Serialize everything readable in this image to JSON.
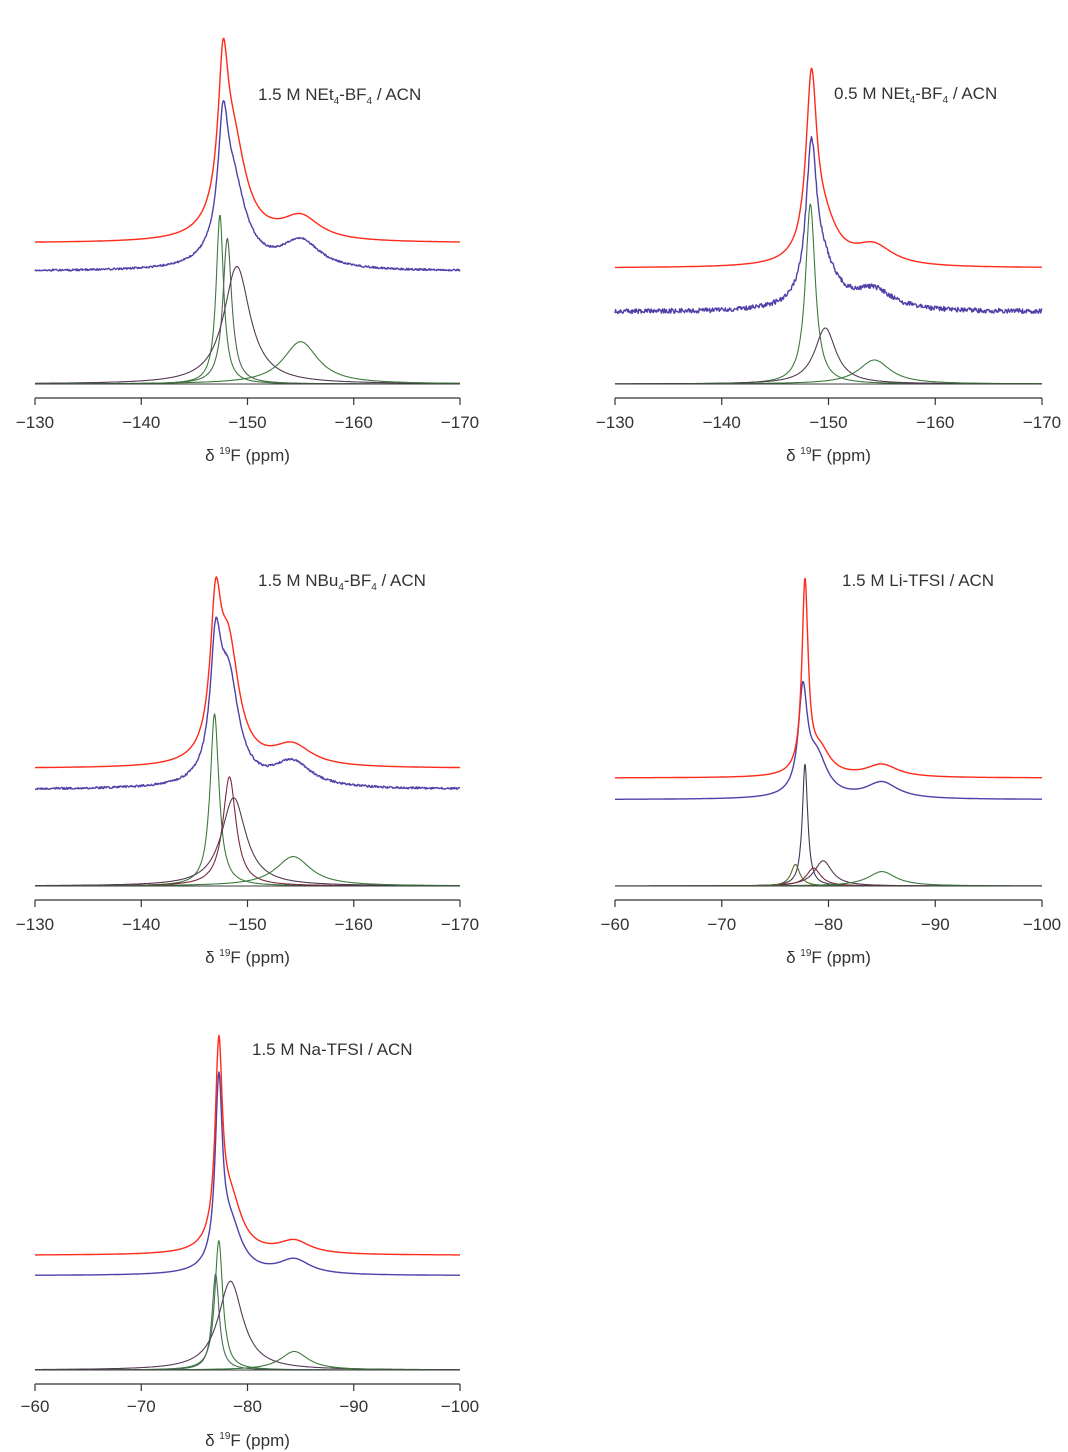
{
  "chart_data": [
    {
      "type": "line",
      "title": "1.5 M NEt4-BF4 / ACN",
      "title_parts": [
        {
          "text": "1.5 M NEt",
          "sub": false
        },
        {
          "text": "4",
          "sub": true
        },
        {
          "text": "-BF",
          "sub": false
        },
        {
          "text": "4",
          "sub": true
        },
        {
          "text": " / ACN",
          "sub": false
        }
      ],
      "xlabel": "δ 19F (ppm)",
      "xlabel_parts": [
        {
          "text": "δ ",
          "sup": false
        },
        {
          "text": "19",
          "sup": true
        },
        {
          "text": "F (ppm)",
          "sup": false
        }
      ],
      "xlim": [
        -130,
        -170
      ],
      "x_reversed": true,
      "xticks": [
        -130,
        -140,
        -150,
        -160,
        -170
      ],
      "xtick_labels": [
        "−130",
        "−140",
        "−150",
        "−160",
        "−170"
      ],
      "y_ticks_shown": false,
      "series": [
        {
          "color": "#ff2a1a",
          "offset": 0.6,
          "noise": 0,
          "peaks": [
            {
              "center": -147.7,
              "amplitude": 0.55,
              "width": 0.55
            },
            {
              "center": -148.6,
              "amplitude": 0.42,
              "width": 1.5
            },
            {
              "center": -155.0,
              "amplitude": 0.1,
              "width": 2.2
            }
          ]
        },
        {
          "color": "#5040a8",
          "offset": 0.48,
          "noise": 0.004,
          "peaks": [
            {
              "center": -147.7,
              "amplitude": 0.45,
              "width": 0.55
            },
            {
              "center": -148.6,
              "amplitude": 0.36,
              "width": 1.5
            },
            {
              "center": -155.0,
              "amplitude": 0.12,
              "width": 2.2
            }
          ]
        },
        {
          "color": "#3d7a3d",
          "offset": 0.0,
          "noise": 0,
          "peaks": [
            {
              "center": -147.4,
              "amplitude": 0.72,
              "width": 0.42
            }
          ]
        },
        {
          "color": "#4a6a4a",
          "offset": 0.0,
          "noise": 0,
          "peaks": [
            {
              "center": -148.1,
              "amplitude": 0.62,
              "width": 0.5
            }
          ]
        },
        {
          "color": "#553a55",
          "offset": 0.0,
          "noise": 0,
          "peaks": [
            {
              "center": -149.0,
              "amplitude": 0.5,
              "width": 1.5
            }
          ]
        },
        {
          "color": "#3d7a3d",
          "offset": 0.0,
          "noise": 0,
          "peaks": [
            {
              "center": -155.0,
              "amplitude": 0.18,
              "width": 2.0
            }
          ]
        },
        {
          "color": "#3a3a3a",
          "offset": 0.0,
          "noise": 0,
          "peaks": []
        }
      ]
    },
    {
      "type": "line",
      "title": "0.5 M NEt4-BF4 / ACN",
      "title_parts": [
        {
          "text": "0.5 M NEt",
          "sub": false
        },
        {
          "text": "4",
          "sub": true
        },
        {
          "text": "-BF",
          "sub": false
        },
        {
          "text": "4",
          "sub": true
        },
        {
          "text": " / ACN",
          "sub": false
        }
      ],
      "xlabel": "δ 19F (ppm)",
      "xlabel_parts": [
        {
          "text": "δ ",
          "sup": false
        },
        {
          "text": "19",
          "sup": true
        },
        {
          "text": "F (ppm)",
          "sup": false
        }
      ],
      "xlim": [
        -130,
        -170
      ],
      "x_reversed": true,
      "xticks": [
        -130,
        -140,
        -150,
        -160,
        -170
      ],
      "xtick_labels": [
        "−130",
        "−140",
        "−150",
        "−160",
        "−170"
      ],
      "y_ticks_shown": false,
      "series": [
        {
          "color": "#ff2a1a",
          "offset": 0.58,
          "noise": 0,
          "peaks": [
            {
              "center": -148.4,
              "amplitude": 0.85,
              "width": 0.6
            },
            {
              "center": -149.5,
              "amplitude": 0.2,
              "width": 1.6
            },
            {
              "center": -154.2,
              "amplitude": 0.1,
              "width": 2.2
            }
          ]
        },
        {
          "color": "#5040a8",
          "offset": 0.36,
          "noise": 0.012,
          "peaks": [
            {
              "center": -148.4,
              "amplitude": 0.72,
              "width": 0.6
            },
            {
              "center": -149.5,
              "amplitude": 0.2,
              "width": 1.6
            },
            {
              "center": -154.2,
              "amplitude": 0.1,
              "width": 2.2
            }
          ]
        },
        {
          "color": "#3d7a3d",
          "offset": 0.0,
          "noise": 0,
          "peaks": [
            {
              "center": -148.3,
              "amplitude": 0.9,
              "width": 0.55
            }
          ]
        },
        {
          "color": "#553a55",
          "offset": 0.0,
          "noise": 0,
          "peaks": [
            {
              "center": -149.7,
              "amplitude": 0.28,
              "width": 1.2
            }
          ]
        },
        {
          "color": "#3d7a3d",
          "offset": 0.0,
          "noise": 0,
          "peaks": [
            {
              "center": -154.3,
              "amplitude": 0.12,
              "width": 1.8
            }
          ]
        },
        {
          "color": "#3a3a3a",
          "offset": 0.0,
          "noise": 0,
          "peaks": []
        }
      ]
    },
    {
      "type": "line",
      "title": "1.5 M NBu4-BF4 / ACN",
      "title_parts": [
        {
          "text": "1.5 M NBu",
          "sub": false
        },
        {
          "text": "4",
          "sub": true
        },
        {
          "text": "-BF",
          "sub": false
        },
        {
          "text": "4",
          "sub": true
        },
        {
          "text": " / ACN",
          "sub": false
        }
      ],
      "xlabel": "δ 19F (ppm)",
      "xlabel_parts": [
        {
          "text": "δ ",
          "sup": false
        },
        {
          "text": "19",
          "sup": true
        },
        {
          "text": "F (ppm)",
          "sup": false
        }
      ],
      "xlim": [
        -130,
        -170
      ],
      "x_reversed": true,
      "xticks": [
        -130,
        -140,
        -150,
        -160,
        -170
      ],
      "xtick_labels": [
        "−130",
        "−140",
        "−150",
        "−160",
        "−170"
      ],
      "y_ticks_shown": false,
      "series": [
        {
          "color": "#ff2a1a",
          "offset": 0.56,
          "noise": 0,
          "peaks": [
            {
              "center": -147.0,
              "amplitude": 0.62,
              "width": 0.6
            },
            {
              "center": -148.2,
              "amplitude": 0.55,
              "width": 1.2
            },
            {
              "center": -154.2,
              "amplitude": 0.1,
              "width": 2.2
            }
          ]
        },
        {
          "color": "#5040a8",
          "offset": 0.46,
          "noise": 0.005,
          "peaks": [
            {
              "center": -147.0,
              "amplitude": 0.55,
              "width": 0.6
            },
            {
              "center": -148.2,
              "amplitude": 0.5,
              "width": 1.2
            },
            {
              "center": -154.2,
              "amplitude": 0.12,
              "width": 2.2
            }
          ]
        },
        {
          "color": "#3d7a3d",
          "offset": 0.0,
          "noise": 0,
          "peaks": [
            {
              "center": -146.9,
              "amplitude": 0.82,
              "width": 0.5
            }
          ]
        },
        {
          "color": "#7a2a3a",
          "offset": 0.0,
          "noise": 0,
          "peaks": [
            {
              "center": -148.3,
              "amplitude": 0.52,
              "width": 0.75
            }
          ]
        },
        {
          "color": "#553a55",
          "offset": 0.0,
          "noise": 0,
          "peaks": [
            {
              "center": -148.7,
              "amplitude": 0.42,
              "width": 1.4
            }
          ]
        },
        {
          "color": "#3d7a3d",
          "offset": 0.0,
          "noise": 0,
          "peaks": [
            {
              "center": -154.3,
              "amplitude": 0.14,
              "width": 2.0
            }
          ]
        },
        {
          "color": "#3a3a3a",
          "offset": 0.0,
          "noise": 0,
          "peaks": []
        }
      ]
    },
    {
      "type": "line",
      "title": "1.5 M Li-TFSI / ACN",
      "title_parts": [
        {
          "text": "1.5 M Li-TFSI / ACN",
          "sub": false
        }
      ],
      "xlabel": "δ 19F (ppm)",
      "xlabel_parts": [
        {
          "text": "δ ",
          "sup": false
        },
        {
          "text": "19",
          "sup": true
        },
        {
          "text": "F (ppm)",
          "sup": false
        }
      ],
      "xlim": [
        -60,
        -100
      ],
      "x_reversed": true,
      "xticks": [
        -60,
        -70,
        -80,
        -90,
        -100
      ],
      "xtick_labels": [
        "−60",
        "−70",
        "−80",
        "−90",
        "−100"
      ],
      "y_ticks_shown": false,
      "series": [
        {
          "color": "#ff2a1a",
          "offset": 0.6,
          "noise": 0,
          "peaks": [
            {
              "center": -77.8,
              "amplitude": 1.05,
              "width": 0.35
            },
            {
              "center": -79.2,
              "amplitude": 0.14,
              "width": 1.2
            },
            {
              "center": -85.0,
              "amplitude": 0.07,
              "width": 1.8
            }
          ]
        },
        {
          "color": "#5040a8",
          "offset": 0.48,
          "noise": 0,
          "peaks": [
            {
              "center": -77.6,
              "amplitude": 0.55,
              "width": 0.5
            },
            {
              "center": -78.9,
              "amplitude": 0.22,
              "width": 1.2
            },
            {
              "center": -85.0,
              "amplitude": 0.09,
              "width": 1.8
            }
          ]
        },
        {
          "color": "#3a3a5a",
          "offset": 0.0,
          "noise": 0,
          "peaks": [
            {
              "center": -77.8,
              "amplitude": 0.68,
              "width": 0.3
            }
          ]
        },
        {
          "color": "#553a55",
          "offset": 0.0,
          "noise": 0,
          "peaks": [
            {
              "center": -79.5,
              "amplitude": 0.14,
              "width": 1.0
            }
          ]
        },
        {
          "color": "#7a2a3a",
          "offset": 0.0,
          "noise": 0,
          "peaks": [
            {
              "center": -78.6,
              "amplitude": 0.1,
              "width": 0.8
            }
          ]
        },
        {
          "color": "#5a6a2a",
          "offset": 0.0,
          "noise": 0,
          "peaks": [
            {
              "center": -76.9,
              "amplitude": 0.12,
              "width": 0.5
            }
          ]
        },
        {
          "color": "#3d7a3d",
          "offset": 0.0,
          "noise": 0,
          "peaks": [
            {
              "center": -85.0,
              "amplitude": 0.08,
              "width": 1.6
            }
          ]
        },
        {
          "color": "#3a3a3a",
          "offset": 0.0,
          "noise": 0,
          "peaks": []
        }
      ]
    },
    {
      "type": "line",
      "title": "1.5 M Na-TFSI / ACN",
      "title_parts": [
        {
          "text": "1.5 M Na-TFSI / ACN",
          "sub": false
        }
      ],
      "xlabel": "δ 19F (ppm)",
      "xlabel_parts": [
        {
          "text": "δ ",
          "sup": false
        },
        {
          "text": "19",
          "sup": true
        },
        {
          "text": "F (ppm)",
          "sup": false
        }
      ],
      "xlim": [
        -60,
        -100
      ],
      "x_reversed": true,
      "xticks": [
        -60,
        -70,
        -80,
        -90,
        -100
      ],
      "xtick_labels": [
        "−60",
        "−70",
        "−80",
        "−90",
        "−100"
      ],
      "y_ticks_shown": false,
      "series": [
        {
          "color": "#ff2a1a",
          "offset": 0.62,
          "noise": 0,
          "peaks": [
            {
              "center": -77.3,
              "amplitude": 1.02,
              "width": 0.4
            },
            {
              "center": -78.4,
              "amplitude": 0.28,
              "width": 1.3
            },
            {
              "center": -84.4,
              "amplitude": 0.07,
              "width": 1.8
            }
          ]
        },
        {
          "color": "#5040a8",
          "offset": 0.51,
          "noise": 0,
          "peaks": [
            {
              "center": -77.3,
              "amplitude": 0.95,
              "width": 0.4
            },
            {
              "center": -78.4,
              "amplitude": 0.25,
              "width": 1.3
            },
            {
              "center": -84.4,
              "amplitude": 0.08,
              "width": 1.8
            }
          ]
        },
        {
          "color": "#3d7a3d",
          "offset": 0.0,
          "noise": 0,
          "peaks": [
            {
              "center": -77.3,
              "amplitude": 0.7,
              "width": 0.45
            }
          ]
        },
        {
          "color": "#4a6a5a",
          "offset": 0.0,
          "noise": 0,
          "peaks": [
            {
              "center": -77.0,
              "amplitude": 0.52,
              "width": 0.4
            }
          ]
        },
        {
          "color": "#553a55",
          "offset": 0.0,
          "noise": 0,
          "peaks": [
            {
              "center": -78.4,
              "amplitude": 0.48,
              "width": 1.4
            }
          ]
        },
        {
          "color": "#3d7a3d",
          "offset": 0.0,
          "noise": 0,
          "peaks": [
            {
              "center": -84.4,
              "amplitude": 0.1,
              "width": 1.6
            }
          ]
        },
        {
          "color": "#3a3a3a",
          "offset": 0.0,
          "noise": 0,
          "peaks": []
        }
      ]
    }
  ]
}
